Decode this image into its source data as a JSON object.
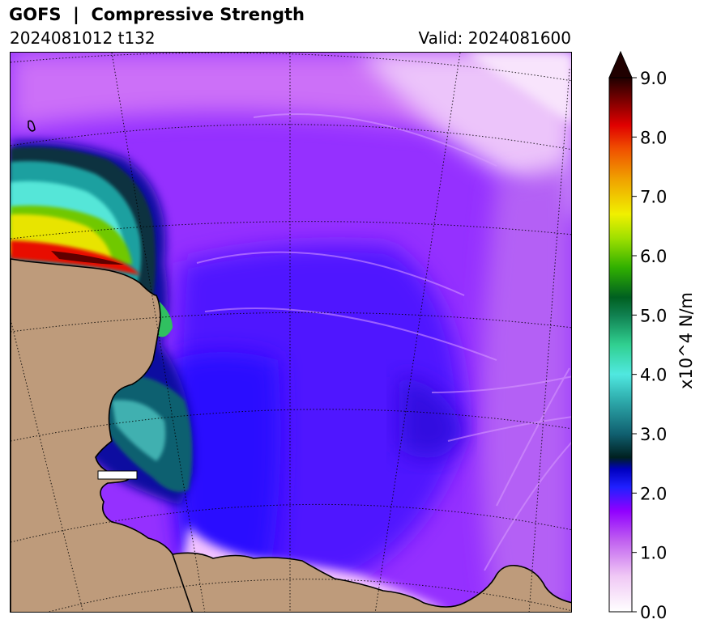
{
  "header": {
    "title": "GOFS  |  Compressive Strength",
    "run": "2024081012 t132",
    "valid": "Valid: 2024081600"
  },
  "colorbar": {
    "label": "x10^4 N/m",
    "vmin": 0.0,
    "vmax": 9.0,
    "ticks": [
      "0.0",
      "1.0",
      "2.0",
      "3.0",
      "4.0",
      "5.0",
      "6.0",
      "7.0",
      "8.0",
      "9.0"
    ],
    "extend": "max",
    "stops": [
      {
        "v": 0.0,
        "c": "#ffffff"
      },
      {
        "v": 0.6,
        "c": "#f0c8f5"
      },
      {
        "v": 1.2,
        "c": "#c060f0"
      },
      {
        "v": 1.7,
        "c": "#9000ff"
      },
      {
        "v": 2.1,
        "c": "#2020ff"
      },
      {
        "v": 2.4,
        "c": "#0000c0"
      },
      {
        "v": 2.6,
        "c": "#002020"
      },
      {
        "v": 3.0,
        "c": "#106070"
      },
      {
        "v": 3.6,
        "c": "#30b0b0"
      },
      {
        "v": 4.0,
        "c": "#50e8e0"
      },
      {
        "v": 4.5,
        "c": "#30d090"
      },
      {
        "v": 5.0,
        "c": "#108050"
      },
      {
        "v": 5.3,
        "c": "#006020"
      },
      {
        "v": 5.8,
        "c": "#30b000"
      },
      {
        "v": 6.3,
        "c": "#a0e000"
      },
      {
        "v": 6.7,
        "c": "#f0f000"
      },
      {
        "v": 7.3,
        "c": "#f0a000"
      },
      {
        "v": 7.8,
        "c": "#f05000"
      },
      {
        "v": 8.2,
        "c": "#e00000"
      },
      {
        "v": 8.6,
        "c": "#800000"
      },
      {
        "v": 9.0,
        "c": "#200000"
      }
    ]
  },
  "map": {
    "land_color": "#be9b7b",
    "ocean_color": "#9a2cff"
  }
}
